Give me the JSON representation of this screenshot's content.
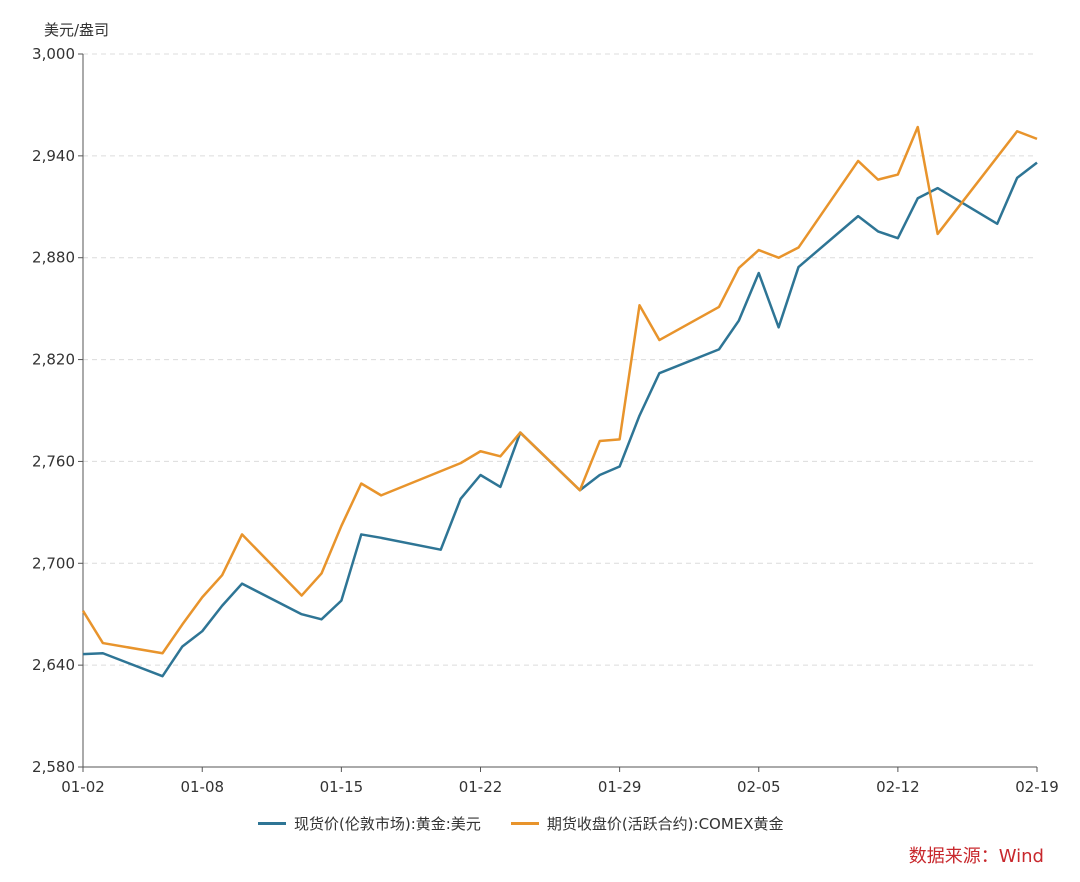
{
  "chart_data": {
    "type": "line",
    "ylabel": "美元/盎司",
    "ylim": [
      2580,
      3000
    ],
    "yticks": [
      "2,580",
      "2,640",
      "2,700",
      "2,760",
      "2,820",
      "2,880",
      "2,940",
      "3,000"
    ],
    "ytick_values": [
      2580,
      2640,
      2700,
      2760,
      2820,
      2880,
      2940,
      3000
    ],
    "xticks": [
      "01-02",
      "01-08",
      "01-15",
      "01-22",
      "01-29",
      "02-05",
      "02-12",
      "02-19"
    ],
    "xlim": [
      "2025-01-02",
      "2025-02-19"
    ],
    "grid": "horizontal dashed",
    "legend_position": "bottom",
    "x": [
      "01-02",
      "01-03",
      "01-06",
      "01-07",
      "01-08",
      "01-09",
      "01-10",
      "01-13",
      "01-14",
      "01-15",
      "01-16",
      "01-17",
      "01-20",
      "01-21",
      "01-22",
      "01-23",
      "01-24",
      "01-27",
      "01-28",
      "01-29",
      "01-30",
      "01-31",
      "02-03",
      "02-04",
      "02-05",
      "02-06",
      "02-07",
      "02-10",
      "02-11",
      "02-12",
      "02-13",
      "02-14",
      "02-17",
      "02-18",
      "02-19"
    ],
    "series": [
      {
        "name": "现货价(伦敦市场):黄金:美元",
        "color": "#2e7595",
        "values": [
          2646.5,
          2647,
          2633.5,
          2651,
          2660,
          2675,
          2688,
          2670,
          2667,
          2678,
          2717,
          2715,
          2708,
          2738,
          2752,
          2745,
          2777,
          2743,
          2752,
          2757,
          2787,
          2812,
          2826,
          2843,
          2871,
          2839,
          2874.5,
          2904.5,
          2895.5,
          2891.5,
          2915,
          2921,
          2900,
          2927,
          2936
        ]
      },
      {
        "name": "期货收盘价(活跃合约):COMEX黄金",
        "color": "#e8942c",
        "values": [
          2672,
          2653,
          2647,
          2664,
          2680,
          2693,
          2717,
          2681,
          2694,
          2722,
          2747,
          2740,
          null,
          2759,
          2766,
          2763,
          2777,
          2743,
          2772,
          2773,
          2852,
          2831.5,
          2851,
          2874,
          2884.5,
          2880,
          2886,
          2937,
          2926,
          2929,
          2957,
          2894,
          null,
          2954.5,
          2950
        ]
      }
    ]
  },
  "source": "数据来源：Wind"
}
